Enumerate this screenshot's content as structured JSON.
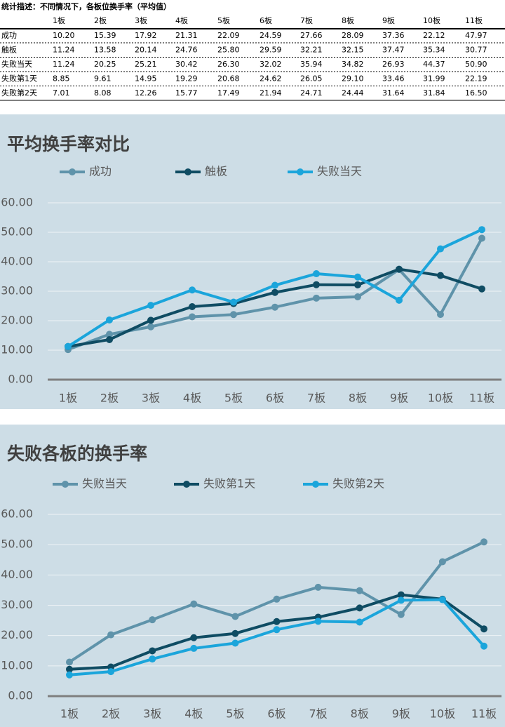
{
  "table": {
    "title": "统计描述：不同情况下，各板位换手率（平均值）",
    "columns": [
      "1板",
      "2板",
      "3板",
      "4板",
      "5板",
      "6板",
      "7板",
      "8板",
      "9板",
      "10板",
      "11板"
    ],
    "rows": [
      [
        "成功",
        "10.20",
        "15.39",
        "17.92",
        "21.31",
        "22.09",
        "24.59",
        "27.66",
        "28.09",
        "37.36",
        "22.12",
        "47.97"
      ],
      [
        "触板",
        "11.24",
        "13.58",
        "20.14",
        "24.76",
        "25.80",
        "29.59",
        "32.21",
        "32.15",
        "37.47",
        "35.34",
        "30.77"
      ],
      [
        "失败当天",
        "11.24",
        "20.25",
        "25.21",
        "30.42",
        "26.30",
        "32.02",
        "35.94",
        "34.82",
        "26.93",
        "44.37",
        "50.90"
      ],
      [
        "失败第1天",
        "8.85",
        "9.61",
        "14.95",
        "19.29",
        "20.68",
        "24.62",
        "26.05",
        "29.10",
        "33.46",
        "31.99",
        "22.19"
      ],
      [
        "失败第2天",
        "7.01",
        "8.08",
        "12.26",
        "15.77",
        "17.49",
        "21.94",
        "24.71",
        "24.44",
        "31.64",
        "31.84",
        "16.50"
      ]
    ]
  },
  "chart_data": [
    {
      "type": "line",
      "title": "平均换手率对比",
      "categories": [
        "1板",
        "2板",
        "3板",
        "4板",
        "5板",
        "6板",
        "7板",
        "8板",
        "9板",
        "10板",
        "11板"
      ],
      "series": [
        {
          "name": "成功",
          "color": "#5f93aa",
          "values": [
            10.2,
            15.39,
            17.92,
            21.31,
            22.09,
            24.59,
            27.66,
            28.09,
            37.36,
            22.12,
            47.97
          ]
        },
        {
          "name": "触板",
          "color": "#0f4c63",
          "values": [
            11.24,
            13.58,
            20.14,
            24.76,
            25.8,
            29.59,
            32.21,
            32.15,
            37.47,
            35.34,
            30.77
          ]
        },
        {
          "name": "失败当天",
          "color": "#1ba5db",
          "values": [
            11.24,
            20.25,
            25.21,
            30.42,
            26.3,
            32.02,
            35.94,
            34.82,
            26.93,
            44.37,
            50.9
          ]
        }
      ],
      "ylim": [
        0,
        60
      ],
      "yticks": [
        {
          "value": 0,
          "label": "0.00"
        },
        {
          "value": 10,
          "label": "10.00"
        },
        {
          "value": 20,
          "label": "20.00"
        },
        {
          "value": 30,
          "label": "30.00"
        },
        {
          "value": 40,
          "label": "40.00"
        },
        {
          "value": 50,
          "label": "50.00"
        },
        {
          "value": 60,
          "label": "60.00"
        }
      ],
      "grid": true,
      "legend": "top"
    },
    {
      "type": "line",
      "title": "失败各板的换手率",
      "categories": [
        "1板",
        "2板",
        "3板",
        "4板",
        "5板",
        "6板",
        "7板",
        "8板",
        "9板",
        "10板",
        "11板"
      ],
      "series": [
        {
          "name": "失败当天",
          "color": "#5f93aa",
          "values": [
            11.24,
            20.25,
            25.21,
            30.42,
            26.3,
            32.02,
            35.94,
            34.82,
            26.93,
            44.37,
            50.9
          ]
        },
        {
          "name": "失败第1天",
          "color": "#0f4c63",
          "values": [
            8.85,
            9.61,
            14.95,
            19.29,
            20.68,
            24.62,
            26.05,
            29.1,
            33.46,
            31.99,
            22.19
          ]
        },
        {
          "name": "失败第2天",
          "color": "#1ba5db",
          "values": [
            7.01,
            8.08,
            12.26,
            15.77,
            17.49,
            21.94,
            24.71,
            24.44,
            31.64,
            31.84,
            16.5
          ]
        }
      ],
      "ylim": [
        0,
        60
      ],
      "yticks": [
        {
          "value": 0,
          "label": "0.00"
        },
        {
          "value": 10,
          "label": "10.00"
        },
        {
          "value": 20,
          "label": "20.00"
        },
        {
          "value": 30,
          "label": "30.00"
        },
        {
          "value": 40,
          "label": "40.00"
        },
        {
          "value": 50,
          "label": "50.00"
        },
        {
          "value": 60,
          "label": "60.00"
        }
      ],
      "grid": true,
      "legend": "top"
    }
  ]
}
